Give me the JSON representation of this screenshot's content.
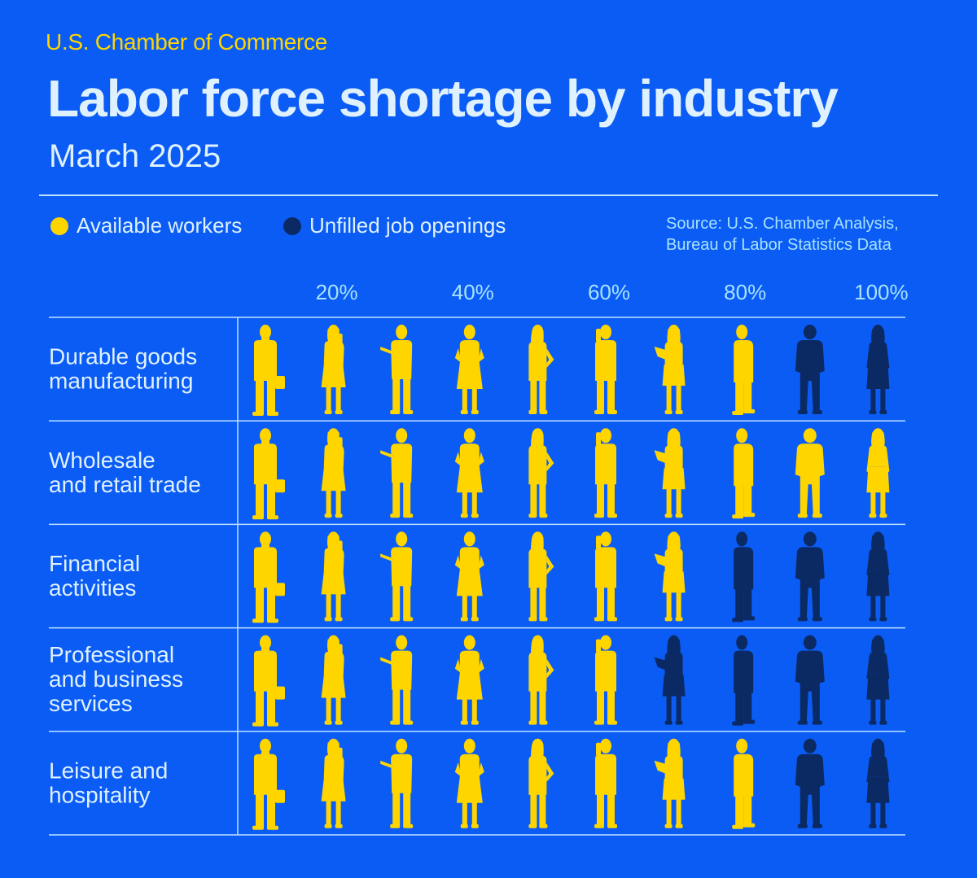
{
  "header": {
    "org": "U.S. Chamber of Commerce",
    "title": "Labor force shortage by industry",
    "subtitle": "March 2025"
  },
  "legend": {
    "available": "Available workers",
    "unfilled": "Unfilled job openings"
  },
  "source": {
    "line1": "Source: U.S. Chamber Analysis,",
    "line2": "Bureau of Labor Statistics Data"
  },
  "colors": {
    "background": "#0a5cf5",
    "available": "#ffd500",
    "unfilled": "#0b2a63",
    "text": "#dff1ff",
    "gridline": "#bfe3ff",
    "tick": "#a8e2ff"
  },
  "chart_data": {
    "type": "pictogram",
    "x_ticks": [
      "20%",
      "40%",
      "60%",
      "80%",
      "100%"
    ],
    "icons_per_row": 10,
    "legend_placement": "top-left",
    "series": [
      {
        "name": "Available workers",
        "color": "#ffd500"
      },
      {
        "name": "Unfilled job openings",
        "color": "#0b2a63"
      }
    ],
    "categories": [
      {
        "label": [
          "Durable goods",
          "manufacturing"
        ],
        "available_workers_icons": 8
      },
      {
        "label": [
          "Wholesale",
          "and retail trade"
        ],
        "available_workers_icons": 10
      },
      {
        "label": [
          "Financial",
          "activities"
        ],
        "available_workers_icons": 7
      },
      {
        "label": [
          "Professional",
          "and business",
          "services"
        ],
        "available_workers_icons": 6
      },
      {
        "label": [
          "Leisure and",
          "hospitality"
        ],
        "available_workers_icons": 8
      }
    ]
  }
}
